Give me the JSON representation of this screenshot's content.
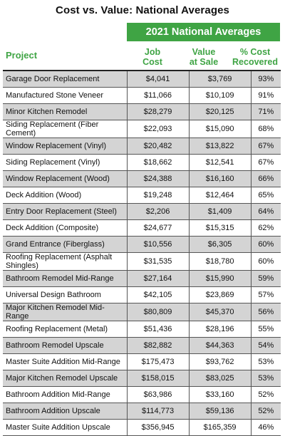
{
  "chart_data": {
    "type": "table",
    "title": "Cost vs. Value: National Averages",
    "group_header": "2021 National Averages",
    "columns": {
      "project": "Project",
      "job_cost": [
        "Job",
        "Cost"
      ],
      "value_at_sale": [
        "Value",
        "at Sale"
      ],
      "cost_recovered": [
        "% Cost",
        "Recovered"
      ]
    },
    "rows": [
      {
        "project": "Garage Door Replacement",
        "job_cost": "$4,041",
        "value_at_sale": "$3,769",
        "cost_recovered": "93%"
      },
      {
        "project": "Manufactured Stone Veneer",
        "job_cost": "$11,066",
        "value_at_sale": "$10,109",
        "cost_recovered": "91%"
      },
      {
        "project": "Minor Kitchen Remodel",
        "job_cost": "$28,279",
        "value_at_sale": "$20,125",
        "cost_recovered": "71%"
      },
      {
        "project": "Siding Replacement (Fiber Cement)",
        "job_cost": "$22,093",
        "value_at_sale": "$15,090",
        "cost_recovered": "68%"
      },
      {
        "project": "Window Replacement (Vinyl)",
        "job_cost": "$20,482",
        "value_at_sale": "$13,822",
        "cost_recovered": "67%"
      },
      {
        "project": "Siding Replacement (Vinyl)",
        "job_cost": "$18,662",
        "value_at_sale": "$12,541",
        "cost_recovered": "67%"
      },
      {
        "project": "Window Replacement (Wood)",
        "job_cost": "$24,388",
        "value_at_sale": "$16,160",
        "cost_recovered": "66%"
      },
      {
        "project": "Deck Addition (Wood)",
        "job_cost": "$19,248",
        "value_at_sale": "$12,464",
        "cost_recovered": "65%"
      },
      {
        "project": "Entry Door Replacement (Steel)",
        "job_cost": "$2,206",
        "value_at_sale": "$1,409",
        "cost_recovered": "64%"
      },
      {
        "project": "Deck Addition (Composite)",
        "job_cost": "$24,677",
        "value_at_sale": "$15,315",
        "cost_recovered": "62%"
      },
      {
        "project": "Grand Entrance (Fiberglass)",
        "job_cost": "$10,556",
        "value_at_sale": "$6,305",
        "cost_recovered": "60%"
      },
      {
        "project": "Roofing Replacement (Asphalt Shingles)",
        "job_cost": "$31,535",
        "value_at_sale": "$18,780",
        "cost_recovered": "60%"
      },
      {
        "project": "Bathroom Remodel Mid-Range",
        "job_cost": "$27,164",
        "value_at_sale": "$15,990",
        "cost_recovered": "59%"
      },
      {
        "project": "Universal Design Bathroom",
        "job_cost": "$42,105",
        "value_at_sale": "$23,869",
        "cost_recovered": "57%"
      },
      {
        "project": "Major Kitchen Remodel Mid-Range",
        "job_cost": "$80,809",
        "value_at_sale": "$45,370",
        "cost_recovered": "56%"
      },
      {
        "project": "Roofing Replacement (Metal)",
        "job_cost": "$51,436",
        "value_at_sale": "$28,196",
        "cost_recovered": "55%"
      },
      {
        "project": "Bathroom Remodel Upscale",
        "job_cost": "$82,882",
        "value_at_sale": "$44,363",
        "cost_recovered": "54%"
      },
      {
        "project": "Master Suite Addition Mid-Range",
        "job_cost": "$175,473",
        "value_at_sale": "$93,762",
        "cost_recovered": "53%"
      },
      {
        "project": "Major Kitchen Remodel Upscale",
        "job_cost": "$158,015",
        "value_at_sale": "$83,025",
        "cost_recovered": "53%"
      },
      {
        "project": "Bathroom Addition Mid-Range",
        "job_cost": "$63,986",
        "value_at_sale": "$33,160",
        "cost_recovered": "52%"
      },
      {
        "project": "Bathroom Addition Upscale",
        "job_cost": "$114,773",
        "value_at_sale": "$59,136",
        "cost_recovered": "52%"
      },
      {
        "project": "Master Suite Addition Upscale",
        "job_cost": "$356,945",
        "value_at_sale": "$165,359",
        "cost_recovered": "46%"
      }
    ]
  },
  "colors": {
    "accent_green": "#3fa444",
    "row_shade": "#d4d4d4",
    "grid_line": "#555555"
  }
}
